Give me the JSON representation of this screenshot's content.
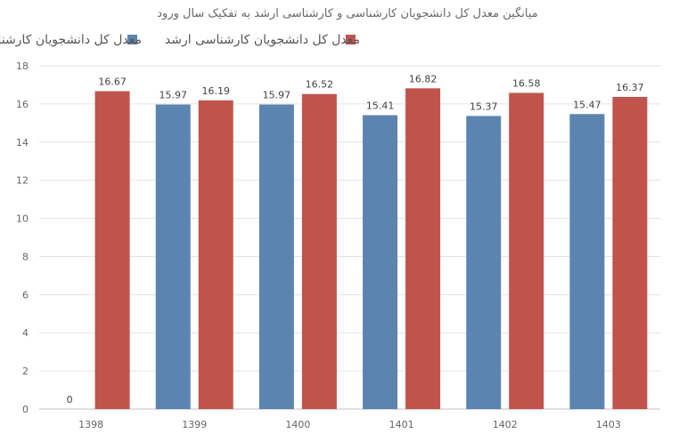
{
  "chart_data": {
    "type": "bar",
    "title": "میانگین معدل کل دانشجویان کارشناسی و کارشناسی ارشد به تفکیک سال ورود",
    "categories": [
      "1398",
      "1399",
      "1400",
      "1401",
      "1402",
      "1403"
    ],
    "series": [
      {
        "name": "معدل کل دانشجویان کارشناسی",
        "color": "#5b84b1",
        "values": [
          0,
          15.97,
          15.97,
          15.41,
          15.37,
          15.47
        ]
      },
      {
        "name": "معدل کل دانشجویان کارشناسی ارشد",
        "color": "#c0544d",
        "values": [
          16.67,
          16.19,
          16.52,
          16.82,
          16.58,
          16.37
        ]
      }
    ],
    "ylim": [
      0,
      18
    ],
    "yticks": [
      0,
      2,
      4,
      6,
      8,
      10,
      12,
      14,
      16,
      18
    ],
    "grid": true,
    "legend_position": "top"
  }
}
